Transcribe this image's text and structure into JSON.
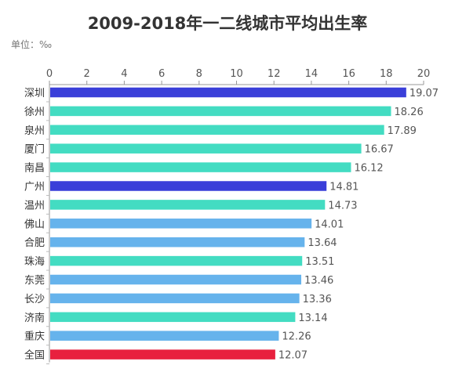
{
  "chart_data": {
    "type": "bar",
    "orientation": "horizontal",
    "title": "2009-2018年一二线城市平均出生率",
    "unit_label": "单位：‰",
    "xlim": [
      0,
      20
    ],
    "x_ticks": [
      0,
      2,
      4,
      6,
      8,
      10,
      12,
      14,
      16,
      18,
      20
    ],
    "grid": false,
    "legend": "none",
    "categories": [
      "深圳",
      "徐州",
      "泉州",
      "厦门",
      "南昌",
      "广州",
      "温州",
      "佛山",
      "合肥",
      "珠海",
      "东莞",
      "长沙",
      "济南",
      "重庆",
      "全国"
    ],
    "values": [
      19.07,
      18.26,
      17.89,
      16.67,
      16.12,
      14.81,
      14.73,
      14.01,
      13.64,
      13.51,
      13.46,
      13.36,
      13.14,
      12.26,
      12.07
    ],
    "value_labels": [
      "19.07",
      "18.26",
      "17.89",
      "16.67",
      "16.12",
      "14.81",
      "14.73",
      "14.01",
      "13.64",
      "13.51",
      "13.46",
      "13.36",
      "13.14",
      "12.26",
      "12.07"
    ],
    "bar_colors": [
      "#3a3fd9",
      "#43dcc2",
      "#43dcc2",
      "#43dcc2",
      "#43dcc2",
      "#3a3fd9",
      "#43dcc2",
      "#66b3ec",
      "#66b3ec",
      "#43dcc2",
      "#66b3ec",
      "#66b3ec",
      "#43dcc2",
      "#66b3ec",
      "#e8203e"
    ]
  }
}
